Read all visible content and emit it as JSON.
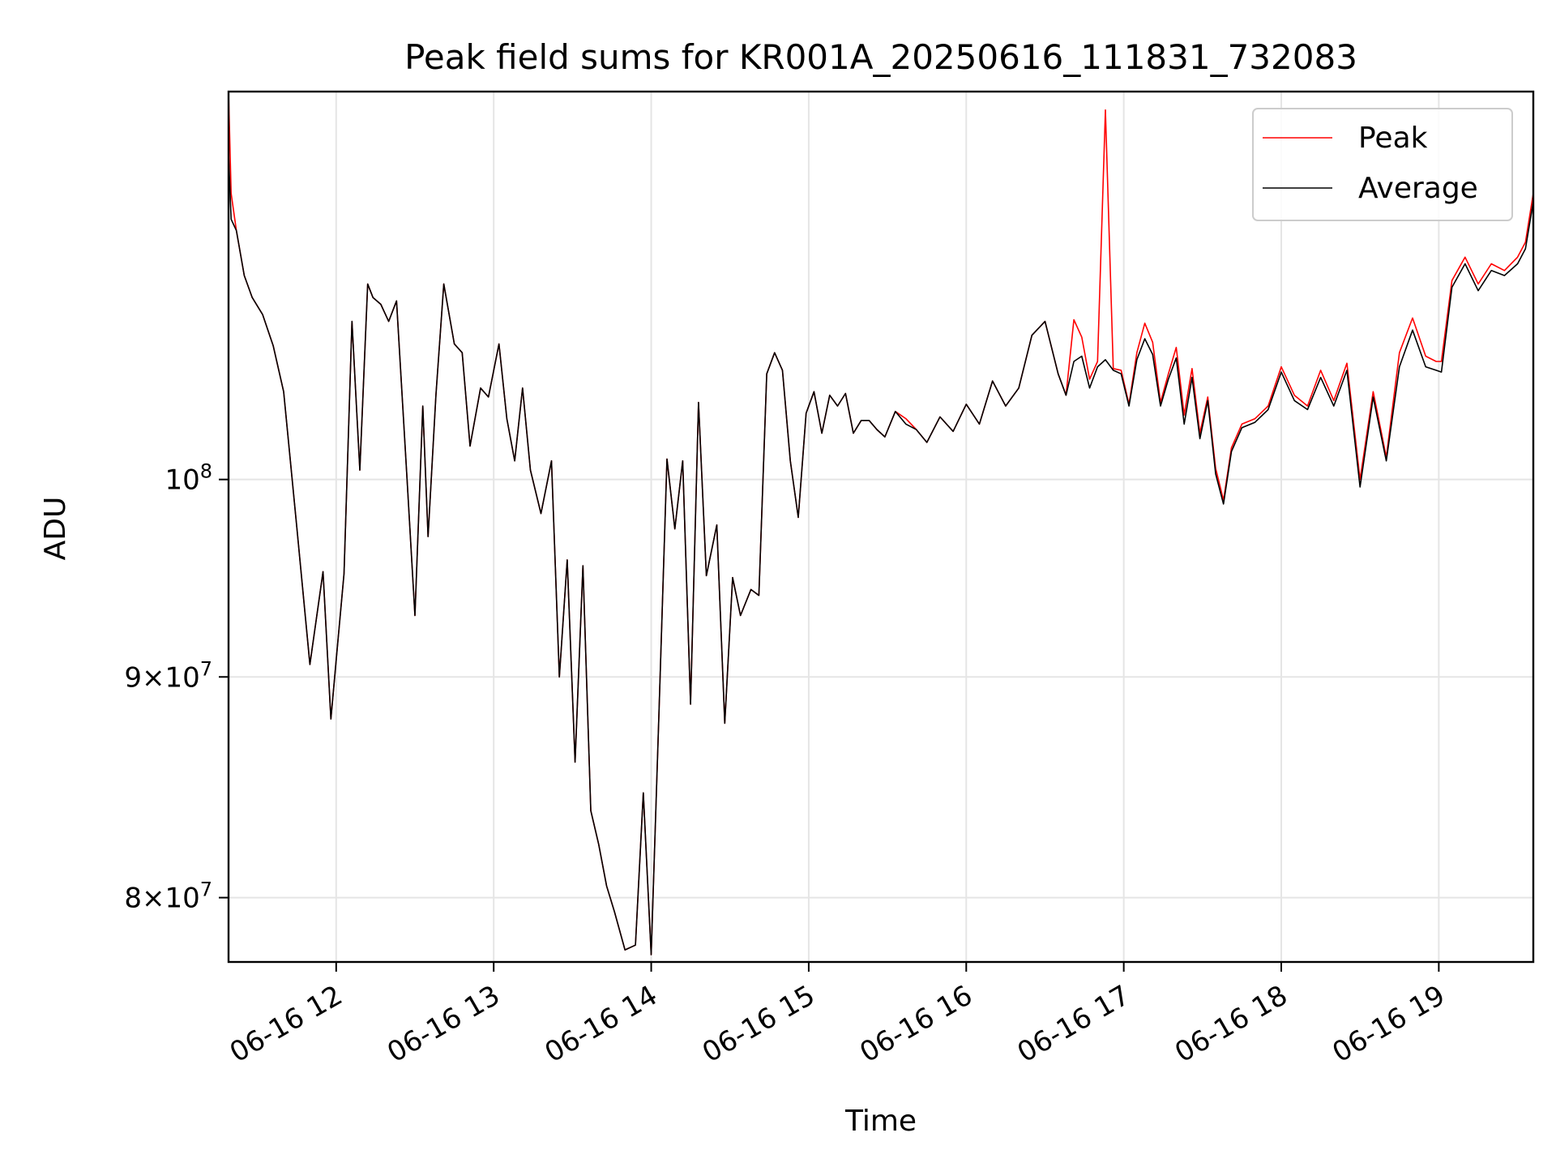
{
  "chart_data": {
    "type": "line",
    "title": "Peak field sums for KR001A_20250616_111831_732083",
    "xlabel": "Time",
    "ylabel": "ADU",
    "yscale": "log",
    "grid": true,
    "legend_placement": "top-right",
    "xlim": [
      "2025-06-16 11:19",
      "2025-06-16 19:36"
    ],
    "ylim": [
      77300000,
      123000000
    ],
    "x_ticks": [
      {
        "value": "2025-06-16 12:00",
        "label": "06-16 12"
      },
      {
        "value": "2025-06-16 13:00",
        "label": "06-16 13"
      },
      {
        "value": "2025-06-16 14:00",
        "label": "06-16 14"
      },
      {
        "value": "2025-06-16 15:00",
        "label": "06-16 15"
      },
      {
        "value": "2025-06-16 16:00",
        "label": "06-16 16"
      },
      {
        "value": "2025-06-16 17:00",
        "label": "06-16 17"
      },
      {
        "value": "2025-06-16 18:00",
        "label": "06-16 18"
      },
      {
        "value": "2025-06-16 19:00",
        "label": "06-16 19"
      }
    ],
    "y_ticks": [
      {
        "value": 80000000,
        "mantissa": "8",
        "label_sep": "×10",
        "exp": "7"
      },
      {
        "value": 90000000,
        "mantissa": "9",
        "label_sep": "×10",
        "exp": "7"
      },
      {
        "value": 100000000,
        "mantissa": "",
        "label_sep": "10",
        "exp": "8"
      }
    ],
    "x": [
      "2025-06-16 11:19",
      "2025-06-16 11:20",
      "2025-06-16 11:22",
      "2025-06-16 11:25",
      "2025-06-16 11:28",
      "2025-06-16 11:32",
      "2025-06-16 11:36",
      "2025-06-16 11:40",
      "2025-06-16 11:45",
      "2025-06-16 11:50",
      "2025-06-16 11:55",
      "2025-06-16 11:58",
      "2025-06-16 12:00",
      "2025-06-16 12:03",
      "2025-06-16 12:06",
      "2025-06-16 12:09",
      "2025-06-16 12:12",
      "2025-06-16 12:14",
      "2025-06-16 12:17",
      "2025-06-16 12:20",
      "2025-06-16 12:23",
      "2025-06-16 12:27",
      "2025-06-16 12:30",
      "2025-06-16 12:33",
      "2025-06-16 12:35",
      "2025-06-16 12:38",
      "2025-06-16 12:41",
      "2025-06-16 12:45",
      "2025-06-16 12:48",
      "2025-06-16 12:51",
      "2025-06-16 12:55",
      "2025-06-16 12:58",
      "2025-06-16 13:02",
      "2025-06-16 13:05",
      "2025-06-16 13:08",
      "2025-06-16 13:11",
      "2025-06-16 13:14",
      "2025-06-16 13:18",
      "2025-06-16 13:22",
      "2025-06-16 13:25",
      "2025-06-16 13:28",
      "2025-06-16 13:31",
      "2025-06-16 13:34",
      "2025-06-16 13:37",
      "2025-06-16 13:40",
      "2025-06-16 13:43",
      "2025-06-16 13:46",
      "2025-06-16 13:50",
      "2025-06-16 13:54",
      "2025-06-16 13:57",
      "2025-06-16 14:00",
      "2025-06-16 14:03",
      "2025-06-16 14:06",
      "2025-06-16 14:09",
      "2025-06-16 14:12",
      "2025-06-16 14:15",
      "2025-06-16 14:18",
      "2025-06-16 14:21",
      "2025-06-16 14:25",
      "2025-06-16 14:28",
      "2025-06-16 14:31",
      "2025-06-16 14:34",
      "2025-06-16 14:38",
      "2025-06-16 14:41",
      "2025-06-16 14:44",
      "2025-06-16 14:47",
      "2025-06-16 14:50",
      "2025-06-16 14:53",
      "2025-06-16 14:56",
      "2025-06-16 14:59",
      "2025-06-16 15:02",
      "2025-06-16 15:05",
      "2025-06-16 15:08",
      "2025-06-16 15:11",
      "2025-06-16 15:14",
      "2025-06-16 15:17",
      "2025-06-16 15:20",
      "2025-06-16 15:23",
      "2025-06-16 15:26",
      "2025-06-16 15:29",
      "2025-06-16 15:33",
      "2025-06-16 15:37",
      "2025-06-16 15:41",
      "2025-06-16 15:45",
      "2025-06-16 15:50",
      "2025-06-16 15:55",
      "2025-06-16 16:00",
      "2025-06-16 16:05",
      "2025-06-16 16:10",
      "2025-06-16 16:15",
      "2025-06-16 16:20",
      "2025-06-16 16:25",
      "2025-06-16 16:30",
      "2025-06-16 16:35",
      "2025-06-16 16:38",
      "2025-06-16 16:41",
      "2025-06-16 16:44",
      "2025-06-16 16:47",
      "2025-06-16 16:50",
      "2025-06-16 16:53",
      "2025-06-16 16:56",
      "2025-06-16 16:59",
      "2025-06-16 17:02",
      "2025-06-16 17:05",
      "2025-06-16 17:08",
      "2025-06-16 17:11",
      "2025-06-16 17:14",
      "2025-06-16 17:17",
      "2025-06-16 17:20",
      "2025-06-16 17:23",
      "2025-06-16 17:26",
      "2025-06-16 17:29",
      "2025-06-16 17:32",
      "2025-06-16 17:35",
      "2025-06-16 17:38",
      "2025-06-16 17:41",
      "2025-06-16 17:45",
      "2025-06-16 17:50",
      "2025-06-16 17:55",
      "2025-06-16 18:00",
      "2025-06-16 18:05",
      "2025-06-16 18:10",
      "2025-06-16 18:15",
      "2025-06-16 18:20",
      "2025-06-16 18:25",
      "2025-06-16 18:30",
      "2025-06-16 18:35",
      "2025-06-16 18:40",
      "2025-06-16 18:45",
      "2025-06-16 18:50",
      "2025-06-16 18:55",
      "2025-06-16 18:59",
      "2025-06-16 19:01",
      "2025-06-16 19:05",
      "2025-06-16 19:10",
      "2025-06-16 19:15",
      "2025-06-16 19:20",
      "2025-06-16 19:25",
      "2025-06-16 19:30",
      "2025-06-16 19:33",
      "2025-06-16 19:36"
    ],
    "series": [
      {
        "name": "Peak",
        "color": "#ff0000",
        "values": [
          123000000,
          116500000,
          114200000,
          111500000,
          110200000,
          109200000,
          107400000,
          104800000,
          97500000,
          90600000,
          95200000,
          88000000,
          90800000,
          95100000,
          108800000,
          100500000,
          111000000,
          110200000,
          109800000,
          108800000,
          110000000,
          100000000,
          93000000,
          104000000,
          97000000,
          104600000,
          111000000,
          107500000,
          107000000,
          101800000,
          105000000,
          104500000,
          107500000,
          103300000,
          101000000,
          105000000,
          100500000,
          98200000,
          101000000,
          90000000,
          95800000,
          86000000,
          95500000,
          83800000,
          82300000,
          80500000,
          79400000,
          77800000,
          78000000,
          84600000,
          77600000,
          88500000,
          101100000,
          97400000,
          101000000,
          88700000,
          104200000,
          95000000,
          97600000,
          87800000,
          94900000,
          93000000,
          94300000,
          94000000,
          105800000,
          107000000,
          106000000,
          101000000,
          98000000,
          103600000,
          104800000,
          102500000,
          104600000,
          104000000,
          104700000,
          102500000,
          103200000,
          103200000,
          102700000,
          102300000,
          103700000,
          103300000,
          102700000,
          102000000,
          103400000,
          102600000,
          104100000,
          103000000,
          105400000,
          104000000,
          105000000,
          108000000,
          108800000,
          105800000,
          104600000,
          108900000,
          107900000,
          105500000,
          106500000,
          121800000,
          106100000,
          106000000,
          104100000,
          107000000,
          108700000,
          107600000,
          104200000,
          105800000,
          107300000,
          103500000,
          106100000,
          102500000,
          104500000,
          100600000,
          98900000,
          101700000,
          103000000,
          103300000,
          104000000,
          106200000,
          104600000,
          104000000,
          106000000,
          104300000,
          106400000,
          100000000,
          104800000,
          101200000,
          107000000,
          109000000,
          106800000,
          106500000,
          106500000,
          111200000,
          112600000,
          111000000,
          112200000,
          111800000,
          112600000,
          113500000,
          116500000
        ],
        "legend_label": "Peak"
      },
      {
        "name": "Average",
        "color": "#000000",
        "values": [
          119000000,
          114900000,
          114200000,
          111500000,
          110200000,
          109200000,
          107400000,
          104800000,
          97500000,
          90600000,
          95200000,
          88000000,
          90800000,
          95100000,
          108800000,
          100500000,
          111000000,
          110200000,
          109800000,
          108800000,
          110000000,
          100000000,
          93000000,
          104000000,
          97000000,
          104600000,
          111000000,
          107500000,
          107000000,
          101800000,
          105000000,
          104500000,
          107500000,
          103300000,
          101000000,
          105000000,
          100500000,
          98200000,
          101000000,
          90000000,
          95800000,
          86000000,
          95500000,
          83800000,
          82300000,
          80500000,
          79400000,
          77800000,
          78000000,
          84600000,
          77600000,
          88500000,
          101100000,
          97400000,
          101000000,
          88700000,
          104200000,
          95000000,
          97600000,
          87800000,
          94900000,
          93000000,
          94300000,
          94000000,
          105800000,
          107000000,
          106000000,
          101000000,
          98000000,
          103600000,
          104800000,
          102500000,
          104600000,
          104000000,
          104700000,
          102500000,
          103200000,
          103200000,
          102700000,
          102300000,
          103700000,
          103000000,
          102700000,
          102000000,
          103400000,
          102600000,
          104100000,
          103000000,
          105400000,
          104000000,
          105000000,
          108000000,
          108800000,
          105800000,
          104600000,
          106500000,
          106800000,
          105000000,
          106200000,
          106600000,
          106000000,
          105800000,
          104000000,
          106600000,
          107800000,
          106900000,
          104000000,
          105500000,
          106700000,
          103000000,
          105600000,
          102200000,
          104300000,
          100300000,
          98700000,
          101500000,
          102800000,
          103100000,
          103800000,
          105900000,
          104300000,
          103800000,
          105600000,
          104000000,
          106000000,
          99600000,
          104500000,
          101000000,
          106200000,
          108300000,
          106200000,
          106000000,
          105900000,
          110800000,
          112200000,
          110600000,
          111800000,
          111500000,
          112200000,
          113100000,
          116000000
        ],
        "legend_label": "Average"
      }
    ]
  }
}
